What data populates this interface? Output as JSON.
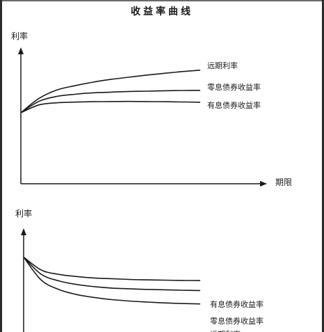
{
  "title": "收益率曲线",
  "chart_data": [
    {
      "type": "line",
      "title": "",
      "ylabel": "利率",
      "xlabel": "期限",
      "series": [
        {
          "name": "远期利率",
          "x": [
            0,
            1,
            2,
            3,
            4,
            5,
            6,
            7,
            8,
            9,
            10
          ],
          "y": [
            5.0,
            6.0,
            6.6,
            6.9,
            7.15,
            7.35,
            7.5,
            7.65,
            7.78,
            7.9,
            8.0
          ]
        },
        {
          "name": "零息债券收益率",
          "x": [
            0,
            1,
            2,
            3,
            4,
            5,
            6,
            7,
            8,
            9,
            10
          ],
          "y": [
            5.0,
            5.8,
            6.15,
            6.3,
            6.4,
            6.45,
            6.5,
            6.52,
            6.55,
            6.57,
            6.58
          ]
        },
        {
          "name": "有息债券收益率",
          "x": [
            0,
            1,
            2,
            3,
            4,
            5,
            6,
            7,
            8,
            9,
            10
          ],
          "y": [
            5.0,
            5.55,
            5.7,
            5.75,
            5.78,
            5.79,
            5.8,
            5.79,
            5.78,
            5.76,
            5.74
          ]
        }
      ],
      "xlim": [
        0,
        10
      ],
      "ylim": [
        0,
        10
      ]
    },
    {
      "type": "line",
      "title": "",
      "ylabel": "利率",
      "xlabel": "",
      "series": [
        {
          "name": "有息债券收益率",
          "x": [
            0,
            1,
            2,
            3,
            4,
            5,
            6,
            7,
            8,
            9,
            10
          ],
          "y": [
            8.0,
            7.1,
            6.8,
            6.65,
            6.55,
            6.5,
            6.45,
            6.42,
            6.4,
            6.38,
            6.37
          ]
        },
        {
          "name": "零息债券收益率",
          "x": [
            0,
            1,
            2,
            3,
            4,
            5,
            6,
            7,
            8,
            9,
            10
          ],
          "y": [
            8.0,
            6.8,
            6.35,
            6.1,
            5.95,
            5.85,
            5.8,
            5.76,
            5.73,
            5.7,
            5.68
          ]
        },
        {
          "name": "远期利率",
          "x": [
            0,
            1,
            2,
            3,
            4,
            5,
            6,
            7,
            8,
            9,
            10
          ],
          "y": [
            8.0,
            6.4,
            5.75,
            5.4,
            5.2,
            5.05,
            4.95,
            4.88,
            4.82,
            4.78,
            4.75
          ]
        }
      ],
      "xlim": [
        0,
        10
      ],
      "ylim": [
        0,
        10
      ]
    }
  ]
}
